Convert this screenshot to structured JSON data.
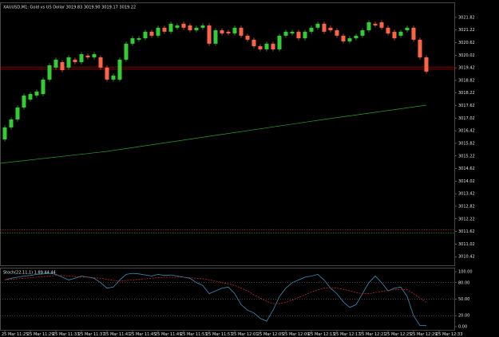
{
  "chart_data": [
    {
      "type": "candlestick",
      "title": "XAUUSD,M1: Gold vs US Dollar 3019.83 3019.90 3019.17 3019.22",
      "bull_color": "#32cd32",
      "bear_color": "#ff6347",
      "xlim": [
        -0.75,
        70.5
      ],
      "ylim": [
        3010.01,
        3022.5
      ],
      "yticks": [
        3021.82,
        3021.22,
        3020.62,
        3020.02,
        3019.42,
        3018.82,
        3018.22,
        3017.62,
        3017.02,
        3016.42,
        3015.82,
        3015.22,
        3014.62,
        3014.02,
        3013.42,
        3012.82,
        3012.22,
        3011.62,
        3011.02,
        3010.42
      ],
      "open": [
        3016.01,
        3016.58,
        3016.96,
        3017.53,
        3017.91,
        3018.1,
        3018.17,
        3018.86,
        3019.43,
        3019.69,
        3019.43,
        3019.81,
        3019.69,
        3020.0,
        3019.92,
        3019.92,
        3019.43,
        3018.86,
        3018.86,
        3019.81,
        3020.57,
        3020.76,
        3020.83,
        3021.14,
        3020.95,
        3021.33,
        3021.14,
        3021.33,
        3021.52,
        3021.44,
        3021.21,
        3021.33,
        3021.44,
        3020.57,
        3021.21,
        3021.14,
        3021.06,
        3021.33,
        3020.95,
        3020.76,
        3020.45,
        3020.3,
        3020.57,
        3020.3,
        3020.95,
        3021.06,
        3021.14,
        3020.83,
        3021.14,
        3021.33,
        3021.52,
        3021.33,
        3021.21,
        3020.95,
        3020.68,
        3020.83,
        3020.95,
        3021.21,
        3021.52,
        3021.59,
        3021.33,
        3021.14,
        3020.95,
        3021.21,
        3021.33,
        3020.76,
        3019.92
      ],
      "high": [
        3016.68,
        3017.06,
        3017.63,
        3018.2,
        3018.27,
        3018.39,
        3018.96,
        3019.64,
        3019.91,
        3019.79,
        3020.02,
        3019.91,
        3020.17,
        3020.1,
        3020.17,
        3020.02,
        3019.53,
        3019.15,
        3019.91,
        3020.67,
        3020.93,
        3020.93,
        3021.24,
        3021.24,
        3021.43,
        3021.43,
        3021.62,
        3021.54,
        3021.62,
        3021.54,
        3021.43,
        3021.54,
        3021.54,
        3021.31,
        3021.31,
        3021.24,
        3021.43,
        3021.43,
        3021.05,
        3020.86,
        3020.55,
        3020.67,
        3020.67,
        3021.05,
        3021.24,
        3021.24,
        3021.24,
        3021.24,
        3021.43,
        3021.62,
        3021.62,
        3021.43,
        3021.31,
        3021.05,
        3020.93,
        3021.05,
        3021.31,
        3021.69,
        3021.62,
        3021.69,
        3021.43,
        3021.24,
        3021.24,
        3021.43,
        3021.43,
        3020.86,
        3020.02
      ],
      "low": [
        3015.91,
        3016.48,
        3016.86,
        3017.43,
        3017.81,
        3018.0,
        3018.07,
        3018.76,
        3019.33,
        3019.21,
        3019.33,
        3019.59,
        3019.59,
        3019.82,
        3019.82,
        3019.33,
        3018.76,
        3018.76,
        3018.76,
        3019.71,
        3020.47,
        3020.66,
        3020.73,
        3020.85,
        3020.85,
        3021.04,
        3021.04,
        3021.23,
        3021.23,
        3021.11,
        3021.11,
        3021.23,
        3020.47,
        3020.47,
        3020.96,
        3020.96,
        3020.96,
        3020.85,
        3020.66,
        3020.35,
        3020.2,
        3020.2,
        3020.2,
        3020.2,
        3020.85,
        3020.96,
        3020.73,
        3020.73,
        3021.04,
        3021.23,
        3021.04,
        3021.11,
        3020.85,
        3020.58,
        3020.58,
        3020.73,
        3020.85,
        3021.11,
        3021.34,
        3021.23,
        3020.96,
        3020.73,
        3020.85,
        3021.11,
        3020.66,
        3019.82,
        3019.14
      ],
      "close": [
        3016.58,
        3016.96,
        3017.53,
        3018.1,
        3018.17,
        3018.29,
        3018.86,
        3019.54,
        3019.81,
        3019.31,
        3019.92,
        3019.69,
        3020.07,
        3019.92,
        3020.07,
        3019.43,
        3018.86,
        3019.05,
        3019.81,
        3020.57,
        3020.83,
        3020.83,
        3021.14,
        3020.95,
        3021.33,
        3021.14,
        3021.52,
        3021.44,
        3021.33,
        3021.21,
        3021.33,
        3021.44,
        3020.57,
        3021.21,
        3021.06,
        3021.06,
        3021.33,
        3020.95,
        3020.76,
        3020.45,
        3020.3,
        3020.57,
        3020.3,
        3020.95,
        3021.14,
        3021.14,
        3020.83,
        3021.14,
        3021.33,
        3021.52,
        3021.14,
        3021.21,
        3020.95,
        3020.68,
        3020.83,
        3020.95,
        3021.21,
        3021.59,
        3021.44,
        3021.33,
        3021.06,
        3020.83,
        3021.14,
        3021.33,
        3020.76,
        3019.92,
        3019.24
      ],
      "overlays": [
        {
          "color": "#2e9e2e",
          "x": [
            -0.75,
            16,
            33,
            50,
            66
          ],
          "values": [
            3014.87,
            3015.44,
            3016.2,
            3016.96,
            3017.64
          ]
        }
      ],
      "hlines": [
        {
          "value": 3019.46,
          "color": "#d00000"
        },
        {
          "value": 3019.35,
          "color": "#d00000"
        },
        {
          "value": 3011.71,
          "color": "#ff3030"
        },
        {
          "value": 3011.56,
          "color": "#20d020"
        }
      ]
    },
    {
      "type": "line",
      "title": "Stoch(22,11,1) 1.89 44.44",
      "xlim": [
        -0.75,
        70.5
      ],
      "ylim": [
        0,
        100
      ],
      "yticks": [
        {
          "value": 100,
          "label": "100.00"
        },
        {
          "value": 80,
          "label": "80.00"
        },
        {
          "value": 50,
          "label": "50.00"
        },
        {
          "value": 20,
          "label": "20.00"
        },
        {
          "value": 0,
          "label": "0.00"
        }
      ],
      "levels": [
        80,
        50,
        20
      ],
      "xticks": [
        {
          "value": 0,
          "label": "25 Mar 11:25"
        },
        {
          "value": 4,
          "label": "25 Mar 11:29"
        },
        {
          "value": 8,
          "label": "25 Mar 11:33"
        },
        {
          "value": 12,
          "label": "25 Mar 11:37"
        },
        {
          "value": 16,
          "label": "25 Mar 11:41"
        },
        {
          "value": 20,
          "label": "25 Mar 11:45"
        },
        {
          "value": 24,
          "label": "25 Mar 11:49"
        },
        {
          "value": 28,
          "label": "25 Mar 11:53"
        },
        {
          "value": 32,
          "label": "25 Mar 11:57"
        },
        {
          "value": 36,
          "label": "25 Mar 12:01"
        },
        {
          "value": 40,
          "label": "25 Mar 12:05"
        },
        {
          "value": 44,
          "label": "25 Mar 12:09"
        },
        {
          "value": 48,
          "label": "25 Mar 12:13"
        },
        {
          "value": 52,
          "label": "25 Mar 12:17"
        },
        {
          "value": 56,
          "label": "25 Mar 12:21"
        },
        {
          "value": 60,
          "label": "25 Mar 12:25"
        },
        {
          "value": 64,
          "label": "25 Mar 12:29"
        },
        {
          "value": 68,
          "label": "25 Mar 12:33"
        }
      ],
      "series": [
        {
          "color": "#3a8fb7",
          "values": [
            85,
            88,
            90,
            92,
            93,
            95,
            96,
            97,
            95,
            90,
            85,
            88,
            92,
            90,
            88,
            80,
            70,
            72,
            85,
            95,
            97,
            96,
            94,
            92,
            95,
            93,
            94,
            92,
            90,
            88,
            80,
            75,
            60,
            65,
            70,
            72,
            60,
            40,
            30,
            25,
            15,
            10,
            30,
            55,
            70,
            80,
            85,
            90,
            92,
            95,
            85,
            70,
            60,
            45,
            35,
            40,
            60,
            80,
            92,
            80,
            65,
            70,
            72,
            55,
            20,
            2,
            1.89
          ]
        },
        {
          "color": "#c0282d",
          "dashed": true,
          "values": [
            85,
            86,
            87,
            88,
            89,
            90,
            91,
            92,
            93,
            93,
            92,
            91,
            90,
            90,
            89,
            88,
            86,
            84,
            83,
            84,
            85,
            86,
            87,
            88,
            89,
            90,
            90,
            90,
            90,
            89,
            88,
            87,
            85,
            83,
            80,
            78,
            75,
            70,
            65,
            58,
            52,
            46,
            42,
            42,
            44,
            48,
            53,
            58,
            63,
            67,
            70,
            71,
            70,
            68,
            65,
            62,
            60,
            60,
            62,
            64,
            66,
            67,
            68,
            67,
            60,
            52,
            44.44
          ]
        }
      ]
    }
  ]
}
